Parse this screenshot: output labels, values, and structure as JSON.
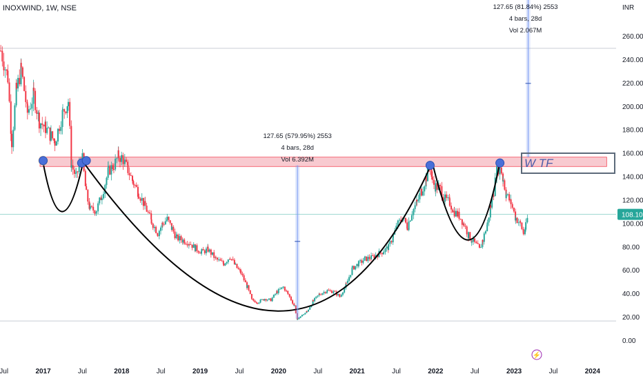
{
  "header": {
    "symbol_line": "INOXWIND, 1W, NSE"
  },
  "colors": {
    "up": "#26a69a",
    "down": "#f23645",
    "zone_fill": "#f8c5cc",
    "zone_stroke": "#f23645",
    "measure": "#7b9cf2",
    "price_line": "#26a69a",
    "cup": "#000000",
    "marker": "#4a6fd8",
    "label_box": "#5c6a7a"
  },
  "chart_data": {
    "type": "candlestick",
    "timeframe": "1W",
    "currency_label": "INR",
    "ylim": [
      0,
      280
    ],
    "y_ticks": [
      "0.00",
      "20.00",
      "40.00",
      "60.00",
      "80.00",
      "100.00",
      "120.00",
      "140.00",
      "160.00",
      "180.00",
      "200.00",
      "220.00",
      "240.00",
      "260.00"
    ],
    "y_tick_values": [
      0,
      20,
      40,
      60,
      80,
      100,
      120,
      140,
      160,
      180,
      200,
      220,
      240,
      260
    ],
    "x_ticks": [
      "Jul",
      "2017",
      "Jul",
      "2018",
      "Jul",
      "2019",
      "Jul",
      "2020",
      "Jul",
      "2021",
      "Jul",
      "2022",
      "Jul",
      "2023",
      "Jul",
      "2024"
    ],
    "x_tick_values": [
      2016.5,
      2017.0,
      2017.5,
      2018.0,
      2018.5,
      2019.0,
      2019.5,
      2020.0,
      2020.5,
      2021.0,
      2021.5,
      2022.0,
      2022.5,
      2023.0,
      2023.5,
      2024.0
    ],
    "xlim": [
      2016.45,
      2024.3
    ],
    "last_price": {
      "label": "108.10",
      "value": 108.1
    },
    "price_path": [
      [
        2016.46,
        248
      ],
      [
        2016.55,
        225
      ],
      [
        2016.6,
        170
      ],
      [
        2016.66,
        215
      ],
      [
        2016.72,
        232
      ],
      [
        2016.8,
        195
      ],
      [
        2016.88,
        210
      ],
      [
        2016.95,
        188
      ],
      [
        2017.03,
        182
      ],
      [
        2017.1,
        175
      ],
      [
        2017.15,
        170
      ],
      [
        2017.25,
        195
      ],
      [
        2017.32,
        205
      ],
      [
        2017.36,
        150
      ],
      [
        2017.42,
        140
      ],
      [
        2017.46,
        150
      ],
      [
        2017.5,
        155
      ],
      [
        2017.55,
        125
      ],
      [
        2017.6,
        112
      ],
      [
        2017.68,
        112
      ],
      [
        2017.75,
        125
      ],
      [
        2017.83,
        145
      ],
      [
        2017.9,
        150
      ],
      [
        2017.96,
        158
      ],
      [
        2018.02,
        155
      ],
      [
        2018.08,
        146
      ],
      [
        2018.15,
        135
      ],
      [
        2018.22,
        126
      ],
      [
        2018.3,
        115
      ],
      [
        2018.38,
        102
      ],
      [
        2018.46,
        92
      ],
      [
        2018.52,
        100
      ],
      [
        2018.58,
        104
      ],
      [
        2018.64,
        96
      ],
      [
        2018.7,
        88
      ],
      [
        2018.78,
        86
      ],
      [
        2018.86,
        84
      ],
      [
        2018.94,
        79
      ],
      [
        2019.02,
        76
      ],
      [
        2019.1,
        78
      ],
      [
        2019.2,
        70
      ],
      [
        2019.3,
        66
      ],
      [
        2019.38,
        72
      ],
      [
        2019.45,
        64
      ],
      [
        2019.52,
        58
      ],
      [
        2019.6,
        46
      ],
      [
        2019.66,
        35
      ],
      [
        2019.73,
        33
      ],
      [
        2019.82,
        36
      ],
      [
        2019.9,
        35
      ],
      [
        2019.98,
        42
      ],
      [
        2020.06,
        46
      ],
      [
        2020.12,
        40
      ],
      [
        2020.2,
        30
      ],
      [
        2020.24,
        18
      ],
      [
        2020.28,
        21
      ],
      [
        2020.36,
        25
      ],
      [
        2020.44,
        34
      ],
      [
        2020.52,
        40
      ],
      [
        2020.62,
        43
      ],
      [
        2020.7,
        42
      ],
      [
        2020.78,
        38
      ],
      [
        2020.86,
        48
      ],
      [
        2020.94,
        62
      ],
      [
        2021.02,
        66
      ],
      [
        2021.1,
        70
      ],
      [
        2021.18,
        71
      ],
      [
        2021.26,
        74
      ],
      [
        2021.34,
        77
      ],
      [
        2021.4,
        80
      ],
      [
        2021.46,
        90
      ],
      [
        2021.52,
        100
      ],
      [
        2021.58,
        105
      ],
      [
        2021.64,
        98
      ],
      [
        2021.7,
        110
      ],
      [
        2021.76,
        118
      ],
      [
        2021.82,
        128
      ],
      [
        2021.88,
        140
      ],
      [
        2021.93,
        150
      ],
      [
        2021.96,
        135
      ],
      [
        2022.0,
        132
      ],
      [
        2022.06,
        130
      ],
      [
        2022.12,
        121
      ],
      [
        2022.18,
        118
      ],
      [
        2022.24,
        110
      ],
      [
        2022.3,
        107
      ],
      [
        2022.36,
        100
      ],
      [
        2022.42,
        90
      ],
      [
        2022.46,
        86
      ],
      [
        2022.52,
        82
      ],
      [
        2022.56,
        78
      ],
      [
        2022.6,
        86
      ],
      [
        2022.66,
        100
      ],
      [
        2022.7,
        115
      ],
      [
        2022.74,
        128
      ],
      [
        2022.78,
        145
      ],
      [
        2022.82,
        150
      ],
      [
        2022.86,
        138
      ],
      [
        2022.9,
        125
      ],
      [
        2022.96,
        118
      ],
      [
        2023.02,
        105
      ],
      [
        2023.08,
        100
      ],
      [
        2023.12,
        92
      ],
      [
        2023.15,
        98
      ],
      [
        2023.18,
        108
      ]
    ],
    "annotations": [
      {
        "id": "measure1",
        "lines": [
          "127.65 (579.95%) 2553",
          "4 bars, 28d",
          "Vol 6.392M"
        ]
      },
      {
        "id": "measure2",
        "lines": [
          "127.65 (81.84%) 2553",
          "4 bars, 28d",
          "Vol 2.067M"
        ]
      },
      {
        "id": "label_box",
        "text": "W TF"
      }
    ],
    "resistance_zone": [
      149,
      157
    ],
    "grid": false,
    "legend": "none"
  }
}
